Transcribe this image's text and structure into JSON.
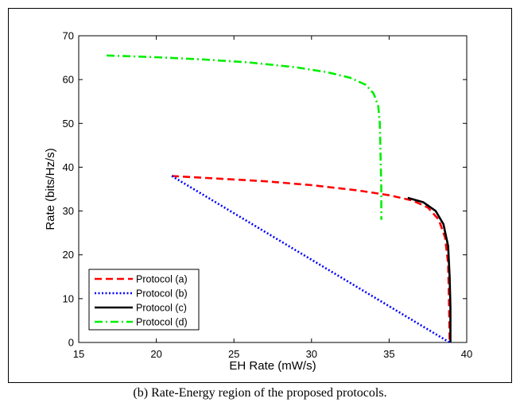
{
  "caption": "(b) Rate-Energy region of the proposed protocols.",
  "chart_data": {
    "type": "line",
    "title": "",
    "xlabel": "EH Rate (mW/s)",
    "ylabel": "Rate (bits/Hz/s)",
    "xlim": [
      15,
      40
    ],
    "ylim": [
      0,
      70
    ],
    "xticks": [
      15,
      20,
      25,
      30,
      35,
      40
    ],
    "yticks": [
      0,
      10,
      20,
      30,
      40,
      50,
      60,
      70
    ],
    "grid": false,
    "legend_position": "bottom-left",
    "series": [
      {
        "name": "Protocol (a)",
        "color": "#ff0000",
        "dash": "dashed",
        "points": [
          [
            21.0,
            38.0
          ],
          [
            24.0,
            37.4
          ],
          [
            27.0,
            36.8
          ],
          [
            30.0,
            35.9
          ],
          [
            33.0,
            34.7
          ],
          [
            35.0,
            33.6
          ],
          [
            36.5,
            32.4
          ],
          [
            37.5,
            30.8
          ],
          [
            38.2,
            28.0
          ],
          [
            38.6,
            24.0
          ],
          [
            38.8,
            18.0
          ],
          [
            38.85,
            10.0
          ],
          [
            38.9,
            0.0
          ]
        ]
      },
      {
        "name": "Protocol (b)",
        "color": "#0000ff",
        "dash": "dotted",
        "points": [
          [
            21.0,
            38.0
          ],
          [
            38.9,
            0.0
          ]
        ]
      },
      {
        "name": "Protocol (c)",
        "color": "#000000",
        "dash": "solid",
        "points": [
          [
            36.2,
            33.0
          ],
          [
            37.2,
            32.0
          ],
          [
            38.0,
            30.0
          ],
          [
            38.5,
            27.0
          ],
          [
            38.8,
            22.0
          ],
          [
            38.9,
            15.0
          ],
          [
            38.95,
            8.0
          ],
          [
            38.95,
            0.0
          ]
        ]
      },
      {
        "name": "Protocol (d)",
        "color": "#00ee00",
        "dash": "dashdot",
        "points": [
          [
            16.8,
            65.5
          ],
          [
            20.0,
            65.1
          ],
          [
            23.0,
            64.6
          ],
          [
            26.0,
            63.9
          ],
          [
            29.0,
            62.8
          ],
          [
            31.0,
            61.7
          ],
          [
            32.5,
            60.4
          ],
          [
            33.5,
            58.8
          ],
          [
            34.0,
            56.8
          ],
          [
            34.3,
            54.0
          ],
          [
            34.4,
            50.0
          ],
          [
            34.45,
            42.0
          ],
          [
            34.5,
            35.0
          ],
          [
            34.5,
            28.0
          ]
        ]
      }
    ]
  }
}
